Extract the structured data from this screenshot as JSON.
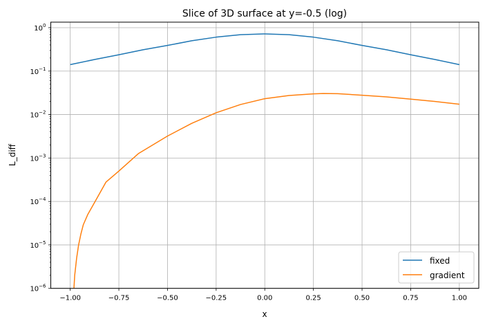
{
  "chart_data": {
    "type": "line",
    "title": "Slice of 3D surface at y=-0.5 (log)",
    "xlabel": "x",
    "ylabel": "L_diff",
    "xlim": [
      -1.1,
      1.1
    ],
    "ylim": [
      1e-06,
      1.34
    ],
    "yscale": "log",
    "grid": true,
    "legend_position": "lower right",
    "xticks": [
      -1.0,
      -0.75,
      -0.5,
      -0.25,
      0.0,
      0.25,
      0.5,
      0.75,
      1.0
    ],
    "xtick_labels": [
      "−1.00",
      "−0.75",
      "−0.50",
      "−0.25",
      "0.00",
      "0.25",
      "0.50",
      "0.75",
      "1.00"
    ],
    "yticks": [
      {
        "value": 1,
        "base": "10",
        "exp": "0"
      },
      {
        "value": 0.1,
        "base": "10",
        "exp": "−1"
      },
      {
        "value": 0.01,
        "base": "10",
        "exp": "−2"
      },
      {
        "value": 0.001,
        "base": "10",
        "exp": "−3"
      },
      {
        "value": 0.0001,
        "base": "10",
        "exp": "−4"
      },
      {
        "value": 1e-05,
        "base": "10",
        "exp": "−5"
      },
      {
        "value": 1e-06,
        "base": "10",
        "exp": "−6"
      }
    ],
    "series": [
      {
        "name": "fixed",
        "color": "#1f77b4",
        "x": [
          -1.0,
          -0.875,
          -0.75,
          -0.625,
          -0.5,
          -0.375,
          -0.25,
          -0.125,
          0.0,
          0.125,
          0.25,
          0.375,
          0.5,
          0.625,
          0.75,
          0.875,
          1.0
        ],
        "y": [
          0.141,
          0.185,
          0.238,
          0.31,
          0.39,
          0.5,
          0.605,
          0.69,
          0.72,
          0.69,
          0.605,
          0.5,
          0.39,
          0.31,
          0.238,
          0.185,
          0.141
        ]
      },
      {
        "name": "gradient",
        "color": "#ff7f0e",
        "x": [
          -0.985,
          -0.981,
          -0.977,
          -0.967,
          -0.957,
          -0.945,
          -0.933,
          -0.91,
          -0.872,
          -0.816,
          -0.75,
          -0.65,
          -0.5,
          -0.375,
          -0.25,
          -0.125,
          0.0,
          0.125,
          0.25,
          0.3,
          0.375,
          0.5,
          0.625,
          0.75,
          0.875,
          1.0
        ],
        "y": [
          5e-07,
          1e-06,
          2e-06,
          5e-06,
          1e-05,
          1.8e-05,
          2.9e-05,
          5e-05,
          0.0001,
          0.00028,
          0.0005,
          0.00126,
          0.0032,
          0.0063,
          0.011,
          0.017,
          0.0232,
          0.0275,
          0.03,
          0.0305,
          0.0302,
          0.0279,
          0.0255,
          0.0227,
          0.02,
          0.0173
        ]
      }
    ]
  }
}
